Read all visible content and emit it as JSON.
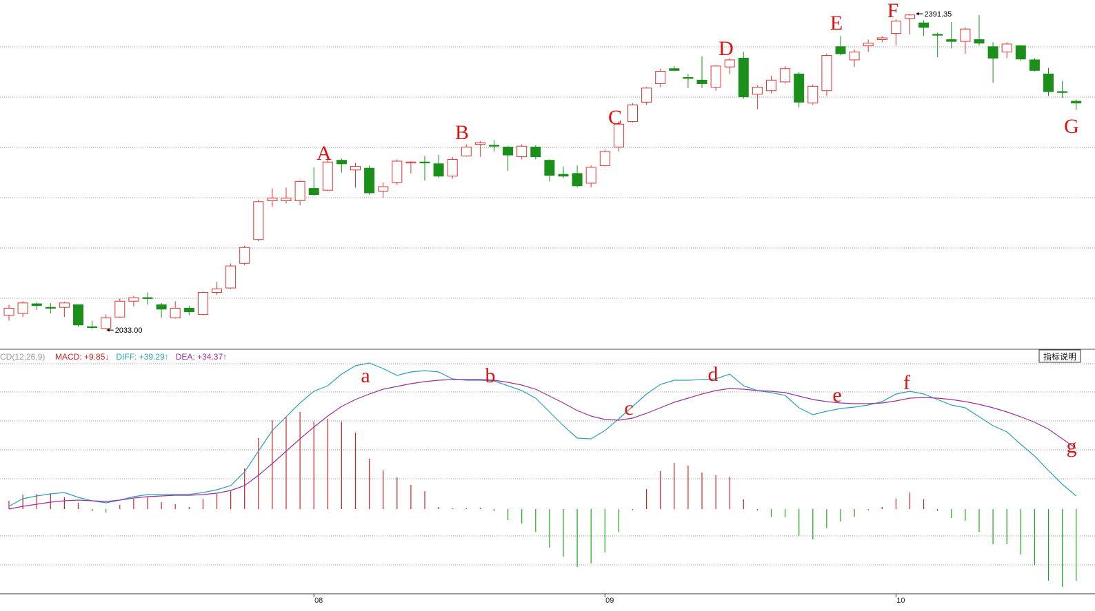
{
  "chart_data": [
    {
      "type": "candlestick",
      "up_color": "#e8312f",
      "down_color": "#1a8f1a",
      "ylim": [
        2012,
        2407
      ],
      "categories": [
        null,
        null,
        null,
        null,
        null,
        null,
        null,
        null,
        null,
        null,
        null,
        null,
        null,
        null,
        null,
        null,
        null,
        null,
        null,
        null,
        null,
        null,
        "08",
        null,
        null,
        null,
        null,
        null,
        null,
        null,
        null,
        null,
        null,
        null,
        null,
        null,
        null,
        null,
        null,
        null,
        null,
        null,
        null,
        "09",
        null,
        null,
        null,
        null,
        null,
        null,
        null,
        null,
        null,
        null,
        null,
        null,
        null,
        null,
        null,
        null,
        null,
        null,
        null,
        null,
        "10",
        null,
        null,
        null,
        null,
        null,
        null,
        null,
        null,
        null,
        null,
        null,
        null,
        null
      ],
      "open": [
        2049,
        2051,
        2062,
        2058,
        2058,
        2061,
        2036,
        2034,
        2047,
        2065,
        2069,
        2061,
        2046,
        2057,
        2050,
        2075,
        2080,
        2108,
        2135,
        2179,
        2179,
        2179,
        2193,
        2191,
        2225,
        2214,
        2216,
        2190,
        2200,
        2222,
        2223,
        2221,
        2207,
        2230,
        2243,
        2242,
        2240,
        2229,
        2240,
        2225,
        2209,
        2210,
        2199,
        2219,
        2240,
        2269,
        2291,
        2312,
        2329,
        2319,
        2316,
        2308,
        2331,
        2341,
        2300,
        2304,
        2314,
        2323,
        2290,
        2304,
        2354,
        2339,
        2355,
        2362,
        2369,
        2386,
        2381,
        2368,
        2362,
        2360,
        2362,
        2354,
        2348,
        2355,
        2339,
        2323,
        2303,
        2292
      ],
      "high": [
        2061,
        2065,
        2064,
        2063,
        2064,
        2061,
        2043,
        2050,
        2068,
        2071,
        2075,
        2063,
        2065,
        2060,
        2076,
        2087,
        2108,
        2128,
        2180,
        2193,
        2194,
        2202,
        2217,
        2226,
        2227,
        2222,
        2219,
        2200,
        2226,
        2224,
        2230,
        2231,
        2229,
        2243,
        2247,
        2248,
        2241,
        2243,
        2242,
        2226,
        2218,
        2219,
        2219,
        2237,
        2269,
        2290,
        2308,
        2329,
        2332,
        2323,
        2343,
        2333,
        2341,
        2348,
        2310,
        2321,
        2332,
        2325,
        2311,
        2346,
        2366,
        2351,
        2362,
        2366,
        2385,
        2391.35,
        2384,
        2370,
        2382,
        2376,
        2390,
        2359,
        2359,
        2356,
        2341,
        2330,
        2315,
        2294
      ],
      "low": [
        2043,
        2047,
        2055,
        2051,
        2047,
        2036,
        2034,
        2033,
        2046,
        2059,
        2061,
        2046,
        2045,
        2049,
        2049,
        2072,
        2079,
        2106,
        2133,
        2172,
        2176,
        2174,
        2185,
        2190,
        2211,
        2194,
        2186,
        2182,
        2197,
        2210,
        2202,
        2205,
        2204,
        2229,
        2229,
        2235,
        2213,
        2226,
        2226,
        2201,
        2205,
        2194,
        2194,
        2218,
        2235,
        2268,
        2288,
        2308,
        2326,
        2307,
        2307,
        2304,
        2323,
        2295,
        2283,
        2301,
        2312,
        2285,
        2288,
        2298,
        2344,
        2331,
        2348,
        2359,
        2355,
        2368,
        2366,
        2342,
        2352,
        2346,
        2355,
        2313,
        2341,
        2338,
        2326,
        2298,
        2296,
        2282
      ],
      "close": [
        2057,
        2063,
        2060,
        2057,
        2063,
        2038,
        2035,
        2046,
        2065,
        2069,
        2068,
        2056,
        2057,
        2053,
        2075,
        2079,
        2105,
        2126,
        2178,
        2182,
        2182,
        2201,
        2186,
        2223,
        2221,
        2218,
        2188,
        2195,
        2224,
        2223,
        2222,
        2207,
        2226,
        2240,
        2245,
        2241,
        2231,
        2241,
        2229,
        2208,
        2207,
        2196,
        2217,
        2235,
        2266,
        2288,
        2307,
        2326,
        2327,
        2318,
        2312,
        2332,
        2339,
        2297,
        2308,
        2316,
        2329,
        2291,
        2309,
        2344,
        2346,
        2348,
        2358,
        2364,
        2383,
        2390,
        2376,
        2367,
        2360,
        2374,
        2358,
        2341,
        2357,
        2340,
        2327,
        2303,
        2302,
        2290
      ],
      "high_label": "2391.35",
      "low_label": "2033.00",
      "annotations": [
        "A",
        "B",
        "C",
        "D",
        "E",
        "F",
        "G"
      ]
    },
    {
      "type": "macd",
      "indicator": "CD(12,26,9)",
      "button": "指标说明",
      "ylim": [
        -24.6,
        46.4
      ],
      "series": [
        {
          "name": "MACD: +9.85↓",
          "color": "#d42020",
          "down_color": "#1aa81a",
          "values": [
            2.4,
            4.2,
            4.4,
            4.6,
            3.4,
            1.8,
            -0.6,
            -1,
            1.2,
            3,
            3.4,
            2,
            1.4,
            0.6,
            2.8,
            4.4,
            5.4,
            11.8,
            20.6,
            25.8,
            26.8,
            28.2,
            25.4,
            26.2,
            25.4,
            22.2,
            14.6,
            11.2,
            9.2,
            7,
            5.2,
            0.6,
            0.2,
            0.2,
            0.4,
            -0.6,
            -3.2,
            -4.2,
            -6.6,
            -11.2,
            -13.8,
            -16.8,
            -15.8,
            -12.6,
            -6.6,
            -0.4,
            5.8,
            11,
            13.4,
            12.6,
            10.6,
            9.8,
            9.4,
            2.8,
            -0.4,
            -2.2,
            -2.4,
            -7.8,
            -8.8,
            -5.6,
            -3.6,
            -2.2,
            -0.4,
            0.6,
            3,
            4.8,
            2.8,
            -0.6,
            -2.6,
            -3.4,
            -6.6,
            -10.2,
            -10.2,
            -13.2,
            -16.2,
            -20.8,
            -22.6,
            -20.8
          ]
        },
        {
          "name": "DIFF: +39.29↑",
          "color": "#2a9fb4",
          "values": [
            0.8,
            3,
            3.8,
            4.4,
            4.8,
            3.4,
            2.4,
            1.8,
            2.6,
            3.6,
            4.2,
            4.2,
            4.2,
            4.2,
            4.8,
            5.6,
            6.8,
            10.8,
            16.8,
            22.8,
            26.8,
            30.8,
            34.2,
            35.8,
            39.2,
            41.6,
            42.4,
            40.8,
            38.8,
            39.8,
            40.2,
            39.8,
            37.8,
            37.4,
            37.4,
            37.2,
            35.8,
            34.4,
            32.2,
            28.2,
            24.2,
            20.6,
            20.4,
            22.8,
            26.2,
            29.8,
            33.4,
            36.2,
            37.4,
            37.4,
            37.6,
            37.8,
            39.2,
            35.8,
            34.4,
            33.8,
            33,
            29.4,
            27.4,
            28.4,
            29.2,
            29.6,
            30.2,
            31.2,
            33.4,
            34.2,
            33.4,
            31.8,
            30.2,
            29.4,
            26.8,
            24.2,
            22.4,
            18.8,
            15.4,
            11.2,
            7.2,
            3.8
          ]
        },
        {
          "name": "DEA: +34.37↑",
          "color": "#9b2f9b",
          "values": [
            0,
            0.8,
            1.4,
            2,
            2.4,
            2.6,
            2.4,
            2.2,
            2.6,
            3.2,
            3.6,
            3.8,
            4,
            4,
            4.2,
            4.6,
            5.4,
            6.8,
            9.8,
            13.2,
            16.8,
            20.4,
            23.8,
            27,
            29.8,
            31.8,
            33.4,
            34.8,
            35.6,
            36.4,
            37,
            37.4,
            37.6,
            37.6,
            37.6,
            37.4,
            36.8,
            36,
            34.8,
            32.8,
            30.8,
            28.6,
            27,
            26,
            25.8,
            26.4,
            27.8,
            29.4,
            31,
            32.2,
            33.4,
            34.4,
            35,
            34.8,
            34.4,
            34.2,
            33.8,
            32.8,
            31.8,
            31.2,
            30.8,
            30.6,
            30.6,
            30.8,
            31.4,
            32.2,
            32.4,
            32.2,
            31.8,
            31.2,
            30.4,
            29.4,
            28.2,
            26.8,
            25.2,
            23.2,
            20.4,
            17.6
          ]
        }
      ],
      "annotations": [
        "a",
        "b",
        "c",
        "d",
        "e",
        "f",
        "g"
      ]
    }
  ]
}
